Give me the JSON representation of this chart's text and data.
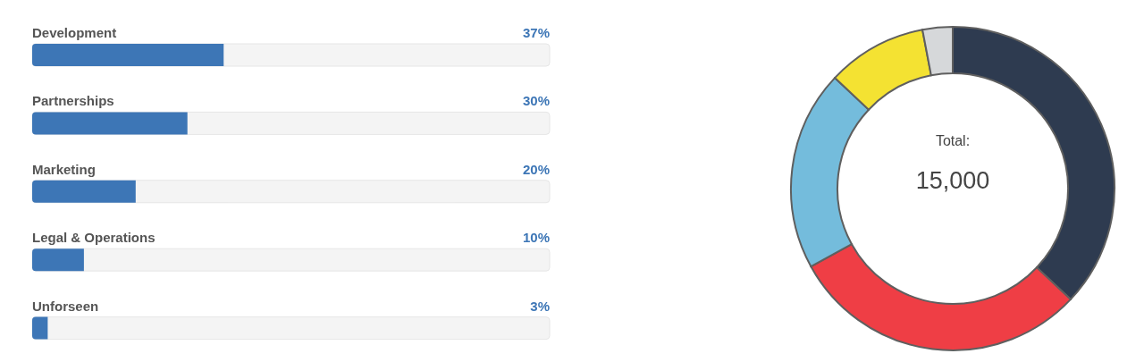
{
  "chart_data": [
    {
      "type": "bar",
      "orientation": "horizontal",
      "categories": [
        "Development",
        "Partnerships",
        "Marketing",
        "Legal & Operations",
        "Unforseen"
      ],
      "values": [
        37,
        30,
        20,
        10,
        3
      ],
      "color": "#3d76b6",
      "xlim": [
        0,
        100
      ],
      "value_labels": [
        "37%",
        "30%",
        "20%",
        "10%",
        "3%"
      ]
    },
    {
      "type": "donut",
      "categories": [
        null,
        null,
        null,
        null,
        null
      ],
      "values": [
        37,
        30,
        20,
        10,
        3
      ],
      "colors": [
        "#2e3b50",
        "#ef3e45",
        "#74bcdc",
        "#f4e232",
        "#d6d8da"
      ],
      "annotations": [
        "Total:",
        "15,000"
      ]
    }
  ]
}
